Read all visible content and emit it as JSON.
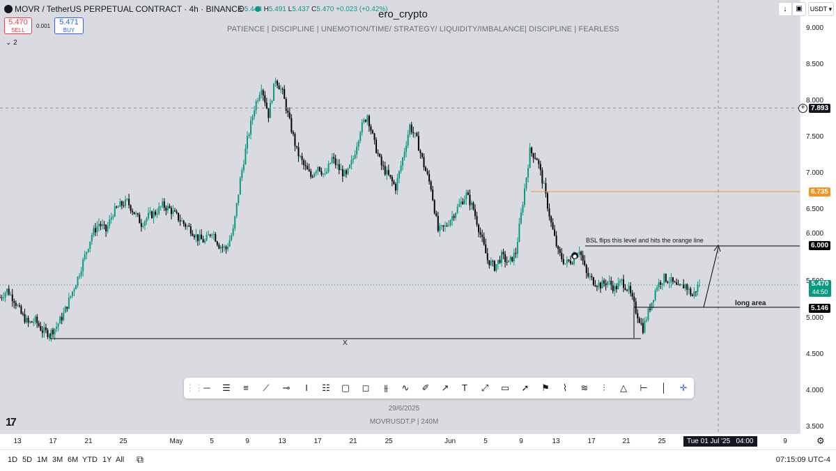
{
  "header": {
    "symbol_title": "MOVR / TetherUS PERPETUAL CONTRACT · 4h · BINANCE",
    "ohlc": {
      "o_label": "O",
      "o": "5.448",
      "h_label": "H",
      "h": "5.491",
      "l_label": "L",
      "l": "5.437",
      "c_label": "C",
      "c": "5.470",
      "change": "+0.023 (+0.42%)"
    },
    "watermark": "ero_crypto",
    "subtitle": "PATIENCE   |   DISCIPLINE   |   UNEMOTION/TIME/ STRATEGY/ LIQUIDITY/IMBALANCE|   DISCIPLINE   |   FEARLESS",
    "sell_price": "5.470",
    "sell_label": "SELL",
    "spread": "0.001",
    "buy_price": "5.471",
    "buy_label": "BUY",
    "indicators_toggle": "2",
    "currency": "USDT"
  },
  "price_axis": {
    "ticks": [
      "9.000",
      "8.500",
      "8.000",
      "7.500",
      "7.000",
      "6.500",
      "6.000",
      "5.500",
      "5.000",
      "4.500",
      "4.000",
      "3.500"
    ],
    "badges": {
      "crosshair": "7.893",
      "orange_level": "6.735",
      "target": "6.000",
      "last_price": "5.470",
      "countdown": "44:50",
      "long_level": "5.146"
    }
  },
  "annotations": {
    "bsl_note": "BSL flips this level and hits the orange line",
    "long_area": "long area",
    "x_mark": "X"
  },
  "center_info": {
    "date": "29/6/2025",
    "symbol_tf": "MOVRUSDT.P  |  240M"
  },
  "time_axis": {
    "labels": [
      "13",
      "17",
      "21",
      "25",
      "May",
      "5",
      "9",
      "13",
      "17",
      "21",
      "25",
      "Jun",
      "5",
      "9",
      "13",
      "17",
      "21",
      "25",
      "9"
    ],
    "crosshair_label": "Tue 01 Jul '25   04:00"
  },
  "footer": {
    "ranges": [
      "1D",
      "5D",
      "1M",
      "3M",
      "6M",
      "YTD",
      "1Y",
      "All"
    ],
    "clock": "07:15:09 UTC-4"
  },
  "toolbar_tools": [
    "horizontal-ray",
    "parallel-channel",
    "fib-retracement",
    "trend-line",
    "horizontal-line",
    "price-range",
    "date-range",
    "rectangle",
    "callout",
    "long-position",
    "curve",
    "brush",
    "arrow-marker",
    "text",
    "path",
    "comment",
    "arrow",
    "flag",
    "zigzag",
    "fib-fan",
    "pitchfork",
    "polyline",
    "date-price-range",
    "vertical-line",
    "crosshair"
  ],
  "colors": {
    "up": "#089981",
    "down": "#000000",
    "orange_line": "#f7941d",
    "blue_badge": "#2962ff"
  },
  "chart_data": {
    "type": "candlestick",
    "ylim": [
      3.4,
      9.2
    ],
    "close_path": [
      5.28,
      5.38,
      5.25,
      5.05,
      4.92,
      4.96,
      4.82,
      4.78,
      4.88,
      5.05,
      5.3,
      5.55,
      5.85,
      6.15,
      6.3,
      6.2,
      6.45,
      6.55,
      6.6,
      6.45,
      6.3,
      6.4,
      6.45,
      6.55,
      6.5,
      6.4,
      6.3,
      6.22,
      6.1,
      6.05,
      6.2,
      6.0,
      5.95,
      6.2,
      6.9,
      7.45,
      7.9,
      8.2,
      7.8,
      8.3,
      8.1,
      7.7,
      7.3,
      7.1,
      6.95,
      7.1,
      6.95,
      7.2,
      7.05,
      6.95,
      7.2,
      7.6,
      7.8,
      7.4,
      7.1,
      6.95,
      6.8,
      7.2,
      7.65,
      7.45,
      7.1,
      6.8,
      6.2,
      6.25,
      6.4,
      6.55,
      6.7,
      6.5,
      6.15,
      5.8,
      5.7,
      5.85,
      5.75,
      5.9,
      6.6,
      7.3,
      7.2,
      6.8,
      6.3,
      5.9,
      5.75,
      5.8,
      5.95,
      5.6,
      5.5,
      5.45,
      5.5,
      5.4,
      5.5,
      5.38,
      5.1,
      4.85,
      5.15,
      5.45,
      5.55,
      5.5,
      5.4,
      5.45,
      5.3,
      5.47
    ]
  }
}
